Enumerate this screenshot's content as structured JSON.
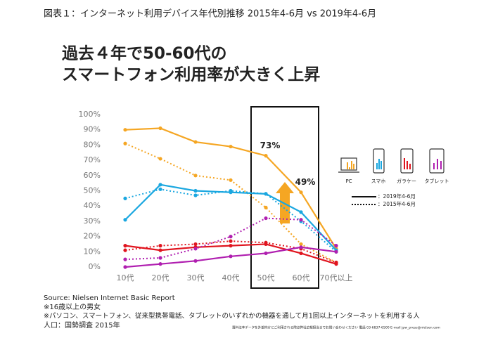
{
  "chart_data": {
    "type": "line",
    "title": "図表１：インターネット利用デバイス年代別推移  2015年4-6月 vs 2019年4-6月",
    "headline": [
      "過去４年で50-60代の",
      "スマートフォン利用率が大きく上昇"
    ],
    "categories": [
      "10代",
      "20代",
      "30代",
      "40代",
      "50代",
      "60代",
      "70代以上"
    ],
    "ylim": [
      0,
      100
    ],
    "yticks": [
      {
        "value": 0,
        "label": "0%"
      },
      {
        "value": 10,
        "label": "10%"
      },
      {
        "value": 20,
        "label": "20%"
      },
      {
        "value": 30,
        "label": "30%"
      },
      {
        "value": 40,
        "label": "40%"
      },
      {
        "value": 50,
        "label": "50%"
      },
      {
        "value": 60,
        "label": "60%"
      },
      {
        "value": 70,
        "label": "70%"
      },
      {
        "value": 80,
        "label": "80%"
      },
      {
        "value": 90,
        "label": "90%"
      },
      {
        "value": 100,
        "label": "100%"
      }
    ],
    "devices": [
      {
        "name": "PC",
        "color": "#f5a623"
      },
      {
        "name": "スマホ",
        "color": "#1aa7e0"
      },
      {
        "name": "ガラケー",
        "color": "#e0141e"
      },
      {
        "name": "タブレット",
        "color": "#b01fb0"
      }
    ],
    "periods": [
      {
        "label": "：2019年4-6月",
        "dashed": false
      },
      {
        "label": "：2015年4-6月",
        "dashed": true
      }
    ],
    "series": [
      {
        "device": 0,
        "period": 0,
        "values": [
          90,
          91,
          82,
          79,
          73,
          49,
          12
        ],
        "value_labels": [
          null,
          null,
          null,
          null,
          "73%",
          "49%",
          null
        ]
      },
      {
        "device": 0,
        "period": 1,
        "values": [
          81,
          71,
          60,
          57,
          39,
          15,
          3
        ]
      },
      {
        "device": 1,
        "period": 0,
        "values": [
          31,
          54,
          50,
          49,
          48,
          36,
          11
        ]
      },
      {
        "device": 1,
        "period": 1,
        "values": [
          45,
          51,
          47,
          50,
          48,
          30,
          10
        ]
      },
      {
        "device": 2,
        "period": 0,
        "values": [
          14,
          11,
          13,
          14,
          15,
          9,
          2
        ]
      },
      {
        "device": 2,
        "period": 1,
        "values": [
          11,
          14,
          15,
          17,
          16,
          12,
          3
        ]
      },
      {
        "device": 3,
        "period": 0,
        "values": [
          0,
          2,
          4,
          7,
          9,
          13,
          10
        ]
      },
      {
        "device": 3,
        "period": 1,
        "values": [
          5,
          6,
          12,
          20,
          32,
          31,
          14
        ]
      }
    ],
    "notes": [
      "Source: Nielsen Internet Basic Report",
      "※16歳以上の男女",
      "※パソコン、スマートフォン、従来型携帯電話、タブレットのいずれかの機器を通して月1回以上インターネットを利用する人",
      "人口：国勢調査 2015年"
    ],
    "footer": "資料は本データを外部向けにご利用される際は弊社広報担当までお問い合わせください 電話 03-6837-6500 E-mail jpw_press@nielsen.com"
  }
}
